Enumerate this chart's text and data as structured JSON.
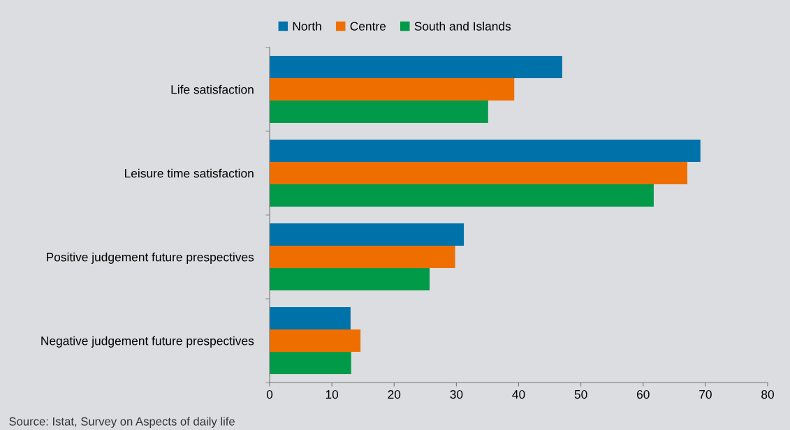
{
  "chart_data": {
    "type": "bar",
    "orientation": "horizontal",
    "categories": [
      "Life satisfaction",
      "Leisure time satisfaction",
      "Positive judgement future prespectives",
      "Negative judgement future prespectives"
    ],
    "series": [
      {
        "name": "North",
        "color": "#0072aa",
        "values": [
          47.0,
          69.2,
          31.2,
          13.0
        ]
      },
      {
        "name": "Centre",
        "color": "#ee6f00",
        "values": [
          39.3,
          67.1,
          29.8,
          14.6
        ]
      },
      {
        "name": "South and Islands",
        "color": "#009a48",
        "values": [
          35.1,
          61.7,
          25.7,
          13.1
        ]
      }
    ],
    "xlim": [
      0,
      80
    ],
    "xticks": [
      0,
      10,
      20,
      30,
      40,
      50,
      60,
      70,
      80
    ],
    "grid": false,
    "legend": "top",
    "annotations": [
      "Source: Istat, Survey on Aspects of daily life"
    ]
  }
}
